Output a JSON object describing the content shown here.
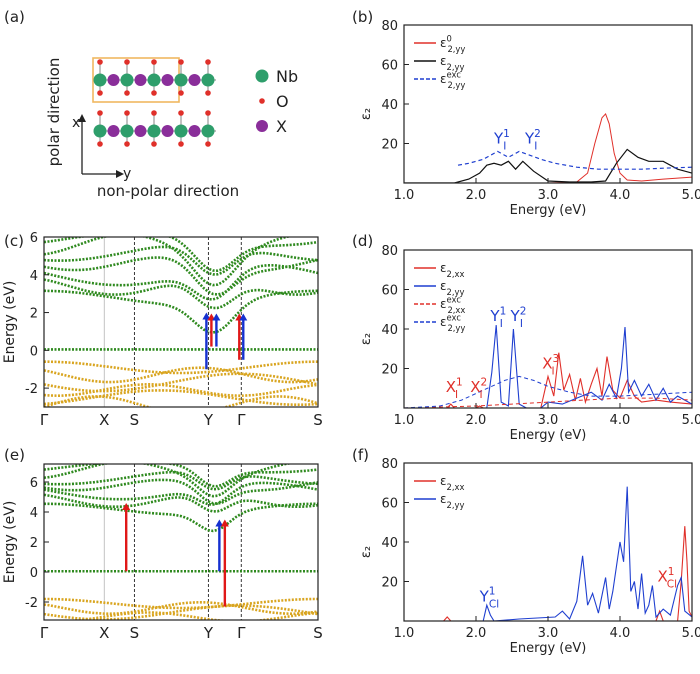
{
  "panel_labels": [
    "(a)",
    "(b)",
    "(c)",
    "(d)",
    "(e)",
    "(f)"
  ],
  "structure": {
    "legend": [
      "Nb",
      "O",
      "X"
    ],
    "axis_x": "x",
    "axis_y": "y",
    "polar_label": "polar direction",
    "nonpolar_label": "non-polar direction",
    "colors": {
      "Nb": "#2e9e6b",
      "O": "#e0302a",
      "X": "#8a2e9a",
      "box": "#f0b860",
      "bond": "#999999"
    }
  },
  "chart_data": [
    {
      "panel": "b",
      "type": "line",
      "xlabel": "Energy (eV)",
      "ylabel": "ε₂",
      "xlim": [
        1.0,
        5.0
      ],
      "ylim": [
        0,
        80
      ],
      "xticks": [
        "1.0",
        "2.0",
        "3.0",
        "4.0",
        "5.0"
      ],
      "yticks": [
        "20",
        "40",
        "60",
        "80"
      ],
      "legend_entries": [
        {
          "base": "ε",
          "sub": "2,yy",
          "sup": "0",
          "color": "#e0302a",
          "dash": "solid"
        },
        {
          "base": "ε",
          "sub": "2,yy",
          "sup": "",
          "color": "#111111",
          "dash": "solid"
        },
        {
          "base": "ε",
          "sub": "2,yy",
          "sup": "exc",
          "color": "#1f3fd0",
          "dash": "dashed"
        }
      ],
      "annotations": [
        {
          "base": "Y",
          "sub": "I",
          "sup": "1",
          "x": 2.25,
          "y": 20,
          "color": "#1f3fd0"
        },
        {
          "base": "Y",
          "sub": "I",
          "sup": "2",
          "x": 2.68,
          "y": 20,
          "color": "#1f3fd0"
        }
      ],
      "series": [
        {
          "key": "eps0",
          "color": "#e0302a",
          "dash": "solid",
          "width": 1.0,
          "x": [
            1.0,
            3.0,
            3.4,
            3.55,
            3.65,
            3.75,
            3.8,
            3.85,
            3.92,
            4.0,
            4.1,
            4.3,
            4.6,
            5.0
          ],
          "y": [
            0,
            0,
            0.5,
            5,
            20,
            33,
            35,
            30,
            15,
            5,
            1.5,
            1,
            2,
            3
          ]
        },
        {
          "key": "eps",
          "color": "#111111",
          "dash": "solid",
          "width": 1.2,
          "x": [
            1.0,
            1.7,
            1.9,
            2.05,
            2.15,
            2.25,
            2.35,
            2.45,
            2.55,
            2.65,
            2.8,
            3.0,
            3.3,
            3.6,
            3.8,
            3.95,
            4.1,
            4.25,
            4.4,
            4.6,
            4.8,
            5.0
          ],
          "y": [
            0,
            0,
            2,
            5,
            9,
            10,
            9,
            11,
            7,
            11,
            6,
            1,
            0.5,
            0.5,
            1,
            10,
            17,
            13,
            11,
            11,
            7,
            5
          ]
        },
        {
          "key": "epsx",
          "color": "#1f3fd0",
          "dash": "dashed",
          "width": 1.2,
          "x": [
            1.75,
            1.9,
            2.1,
            2.3,
            2.45,
            2.6,
            2.75,
            2.9,
            3.1,
            3.4,
            3.7,
            4.0,
            4.3,
            4.6,
            5.0
          ],
          "y": [
            9,
            10,
            12,
            16,
            13,
            16,
            14,
            12,
            10,
            8,
            7,
            7,
            7,
            7.5,
            8
          ]
        }
      ]
    },
    {
      "panel": "d",
      "type": "line",
      "xlabel": "Energy (eV)",
      "ylabel": "ε₂",
      "xlim": [
        1.0,
        5.0
      ],
      "ylim": [
        0,
        80
      ],
      "xticks": [
        "1.0",
        "2.0",
        "3.0",
        "4.0",
        "5.0"
      ],
      "yticks": [
        "20",
        "40",
        "60",
        "80"
      ],
      "legend_entries": [
        {
          "base": "ε",
          "sub": "2,xx",
          "sup": "",
          "color": "#e0302a",
          "dash": "solid"
        },
        {
          "base": "ε",
          "sub": "2,yy",
          "sup": "",
          "color": "#1f3fd0",
          "dash": "solid"
        },
        {
          "base": "ε",
          "sub": "2,xx",
          "sup": "exc",
          "color": "#e0302a",
          "dash": "dashed"
        },
        {
          "base": "ε",
          "sub": "2,yy",
          "sup": "exc",
          "color": "#1f3fd0",
          "dash": "dashed"
        }
      ],
      "annotations": [
        {
          "base": "Y",
          "sub": "I",
          "sup": "1",
          "x": 2.2,
          "y": 44,
          "color": "#1f3fd0"
        },
        {
          "base": "Y",
          "sub": "I",
          "sup": "2",
          "x": 2.48,
          "y": 44,
          "color": "#1f3fd0"
        },
        {
          "base": "X",
          "sub": "I",
          "sup": "1",
          "x": 1.58,
          "y": 8,
          "color": "#e0302a"
        },
        {
          "base": "X",
          "sub": "I",
          "sup": "2",
          "x": 1.92,
          "y": 8,
          "color": "#e0302a"
        },
        {
          "base": "X",
          "sub": "I",
          "sup": "3",
          "x": 2.92,
          "y": 20,
          "color": "#e0302a"
        }
      ],
      "series": [
        {
          "key": "exx",
          "color": "#e0302a",
          "dash": "solid",
          "width": 1.1,
          "x": [
            1.0,
            1.6,
            1.65,
            1.7,
            2.0,
            2.05,
            2.1,
            2.9,
            3.0,
            3.08,
            3.15,
            3.22,
            3.3,
            3.38,
            3.45,
            3.52,
            3.6,
            3.68,
            3.75,
            3.82,
            3.9,
            4.0,
            4.1,
            4.2,
            4.3,
            4.5,
            4.7,
            5.0
          ],
          "y": [
            0,
            0,
            2,
            0,
            0,
            1,
            0,
            0,
            16,
            6,
            28,
            9,
            17,
            4,
            15,
            3,
            12,
            20,
            6,
            26,
            9,
            5,
            14,
            6,
            3,
            4,
            3,
            2
          ]
        },
        {
          "key": "eyy",
          "color": "#1f3fd0",
          "dash": "solid",
          "width": 1.1,
          "x": [
            1.0,
            2.15,
            2.22,
            2.28,
            2.35,
            2.45,
            2.52,
            2.6,
            2.7,
            2.9,
            3.0,
            3.2,
            3.4,
            3.6,
            3.75,
            3.85,
            3.95,
            4.02,
            4.07,
            4.12,
            4.2,
            4.3,
            4.4,
            4.5,
            4.6,
            4.7,
            4.8,
            5.0
          ],
          "y": [
            0,
            0,
            18,
            42,
            3,
            1,
            40,
            2,
            0,
            0,
            3,
            2,
            5,
            8,
            4,
            12,
            5,
            20,
            41,
            8,
            14,
            6,
            12,
            4,
            10,
            3,
            6,
            2
          ]
        },
        {
          "key": "exx_x",
          "color": "#e0302a",
          "dash": "dashed",
          "width": 1.0,
          "x": [
            1.0,
            1.5,
            2.0,
            2.5,
            3.0,
            3.5,
            4.0,
            4.5,
            5.0
          ],
          "y": [
            0,
            0.5,
            1,
            2,
            3,
            4,
            5,
            5,
            4
          ]
        },
        {
          "key": "eyy_x",
          "color": "#1f3fd0",
          "dash": "dashed",
          "width": 1.0,
          "x": [
            1.0,
            1.5,
            1.8,
            2.1,
            2.4,
            2.6,
            2.8,
            3.0,
            3.3,
            3.6,
            4.0,
            4.5,
            5.0
          ],
          "y": [
            0,
            1,
            4,
            9,
            14,
            16,
            14,
            11,
            8,
            6,
            6,
            7,
            8
          ]
        }
      ]
    },
    {
      "panel": "f",
      "type": "line",
      "xlabel": "Energy (eV)",
      "ylabel": "ε₂",
      "xlim": [
        1.0,
        5.0
      ],
      "ylim": [
        0,
        80
      ],
      "xticks": [
        "1.0",
        "2.0",
        "3.0",
        "4.0",
        "5.0"
      ],
      "yticks": [
        "20",
        "40",
        "60",
        "80"
      ],
      "legend_entries": [
        {
          "base": "ε",
          "sub": "2,xx",
          "sup": "",
          "color": "#e0302a",
          "dash": "solid"
        },
        {
          "base": "ε",
          "sub": "2,yy",
          "sup": "",
          "color": "#1f3fd0",
          "dash": "solid"
        }
      ],
      "annotations": [
        {
          "base": "Y",
          "sub": "Cl",
          "sup": "1",
          "x": 2.05,
          "y": 10,
          "color": "#1f3fd0"
        },
        {
          "base": "X",
          "sub": "Cl",
          "sup": "1",
          "x": 4.52,
          "y": 20,
          "color": "#e0302a"
        }
      ],
      "series": [
        {
          "key": "fxx",
          "color": "#e0302a",
          "dash": "solid",
          "width": 1.1,
          "x": [
            1.0,
            1.55,
            1.6,
            1.65,
            4.5,
            4.55,
            4.6,
            4.8,
            4.85,
            4.9,
            4.93,
            4.96,
            5.0
          ],
          "y": [
            0,
            0,
            2,
            0,
            0,
            5,
            0,
            0,
            20,
            48,
            30,
            5,
            2
          ]
        },
        {
          "key": "fyy",
          "color": "#1f3fd0",
          "dash": "solid",
          "width": 1.1,
          "x": [
            1.0,
            2.1,
            2.15,
            2.2,
            2.25,
            2.6,
            3.1,
            3.2,
            3.3,
            3.4,
            3.48,
            3.55,
            3.62,
            3.7,
            3.8,
            3.85,
            3.9,
            4.0,
            4.05,
            4.1,
            4.15,
            4.2,
            4.25,
            4.3,
            4.35,
            4.4,
            4.45,
            4.5,
            4.6,
            4.7,
            4.8,
            4.85,
            4.9,
            5.0
          ],
          "y": [
            0,
            0,
            8,
            3,
            0,
            1,
            2,
            5,
            1,
            10,
            33,
            8,
            14,
            4,
            22,
            6,
            15,
            40,
            30,
            68,
            15,
            20,
            6,
            24,
            4,
            8,
            18,
            2,
            6,
            3,
            18,
            22,
            5,
            2
          ]
        }
      ]
    },
    {
      "panel": "c",
      "type": "line",
      "ylabel": "Energy (eV)",
      "ylim": [
        -3,
        6
      ],
      "kpoints": [
        "Γ",
        "X",
        "S",
        "Y",
        "Γ",
        "S"
      ],
      "kpos": [
        0,
        0.22,
        0.33,
        0.6,
        0.72,
        1.0
      ],
      "yticks": [
        "-2",
        "0",
        "2",
        "4",
        "6"
      ],
      "colors": {
        "conduction": "#2f8a1f",
        "valence": "#d9a520",
        "dashline": "#222222",
        "arrow_red": "#e01818",
        "arrow_blue": "#1530d0"
      }
    },
    {
      "panel": "e",
      "type": "line",
      "ylabel": "Energy (eV)",
      "ylim": [
        -3.2,
        7.2
      ],
      "kpoints": [
        "Γ",
        "X",
        "S",
        "Y",
        "Γ",
        "S"
      ],
      "kpos": [
        0,
        0.22,
        0.33,
        0.6,
        0.72,
        1.0
      ],
      "yticks": [
        "-2",
        "0",
        "2",
        "4",
        "6"
      ],
      "colors": {
        "conduction": "#2f8a1f",
        "valence": "#d9a520",
        "dashline": "#222222",
        "arrow_red": "#e01818",
        "arrow_blue": "#1530d0"
      }
    }
  ]
}
